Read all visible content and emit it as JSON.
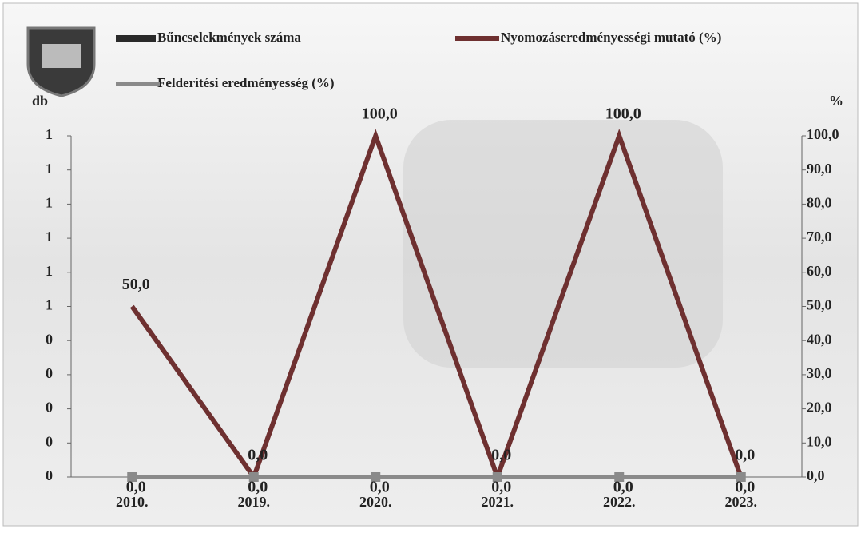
{
  "chart_data": {
    "type": "combo",
    "categories": [
      "2010.",
      "2019.",
      "2020.",
      "2021.",
      "2022.",
      "2023."
    ],
    "y_label": "db",
    "y2_label": "%",
    "series": [
      {
        "name": "Bűncselekmények száma",
        "kind": "bar",
        "color": "#2a2a2a",
        "values": [
          0,
          0,
          0,
          0,
          0,
          0
        ]
      },
      {
        "name": "Nyomozáseredményességi mutató (%)",
        "kind": "line",
        "axis": "y2",
        "color": "#6e3030",
        "values": [
          50,
          0,
          100,
          0,
          100,
          0
        ],
        "value_labels": [
          "50,0",
          "0,0",
          "100,0",
          "0,0",
          "100,0",
          "0,0"
        ]
      },
      {
        "name": "Felderítési eredményesség (%)",
        "kind": "line",
        "axis": "y2",
        "color": "#8a8a8a",
        "values": [
          0,
          0,
          0,
          0,
          0,
          0
        ],
        "value_labels": [
          "0,0",
          "0,0",
          "0,0",
          "0,0",
          "0,0",
          "0,0"
        ]
      }
    ],
    "ylim": [
      0,
      1
    ],
    "yticks": [
      {
        "value": 0,
        "label": "0"
      },
      {
        "value": 0.1,
        "label": "0"
      },
      {
        "value": 0.2,
        "label": "0"
      },
      {
        "value": 0.3,
        "label": "0"
      },
      {
        "value": 0.4,
        "label": "0"
      },
      {
        "value": 0.5,
        "label": "1"
      },
      {
        "value": 0.6,
        "label": "1"
      },
      {
        "value": 0.7,
        "label": "1"
      },
      {
        "value": 0.8,
        "label": "1"
      },
      {
        "value": 0.9,
        "label": "1"
      },
      {
        "value": 1,
        "label": "1"
      }
    ],
    "y2lim": [
      0,
      100
    ],
    "y2ticks": [
      {
        "value": 0,
        "label": "0,0"
      },
      {
        "value": 10,
        "label": "10,0"
      },
      {
        "value": 20,
        "label": "20,0"
      },
      {
        "value": 30,
        "label": "30,0"
      },
      {
        "value": 40,
        "label": "40,0"
      },
      {
        "value": 50,
        "label": "50,0"
      },
      {
        "value": 60,
        "label": "60,0"
      },
      {
        "value": 70,
        "label": "70,0"
      },
      {
        "value": 80,
        "label": "80,0"
      },
      {
        "value": 90,
        "label": "90,0"
      },
      {
        "value": 100,
        "label": "100,0"
      }
    ]
  }
}
